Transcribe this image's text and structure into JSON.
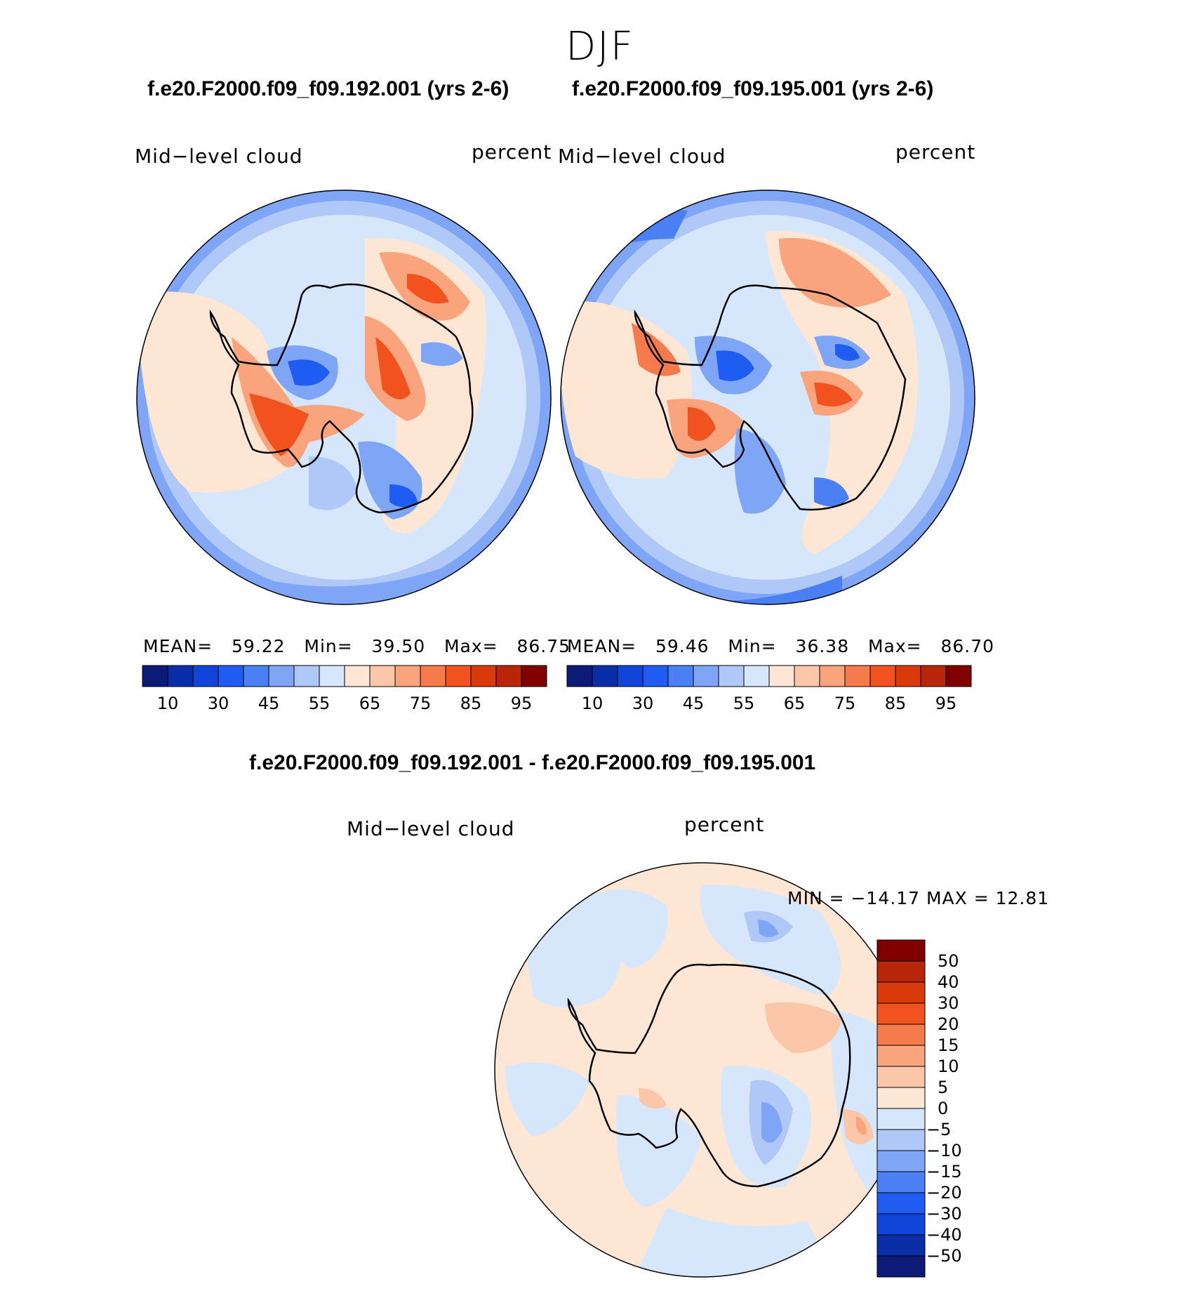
{
  "figure": {
    "title": "DJF",
    "panel_a": {
      "case_title": "f.e20.F2000.f09_f09.192.001 (yrs 2-6)",
      "variable": "Mid−level  cloud",
      "units": "percent",
      "stats": {
        "mean_label": "MEAN=",
        "mean": "59.22",
        "min_label": "Min=",
        "min": "39.50",
        "max_label": "Max=",
        "max": "86.75"
      }
    },
    "panel_b": {
      "case_title": "f.e20.F2000.f09_f09.195.001 (yrs 2-6)",
      "variable": "Mid−level  cloud",
      "units": "percent",
      "stats": {
        "mean_label": "MEAN=",
        "mean": "59.46",
        "min_label": "Min=",
        "min": "36.38",
        "max_label": "Max=",
        "max": "86.70"
      }
    },
    "panel_diff": {
      "case_title": "f.e20.F2000.f09_f09.192.001 - f.e20.F2000.f09_f09.195.001",
      "variable": "Mid−level  cloud",
      "units": "percent",
      "minmax_text": "MIN  =  −14.17  MAX  =    12.81"
    },
    "colorbar_abs": {
      "colors": [
        "#0c1a78",
        "#0a2ea8",
        "#0f45d8",
        "#1f5cf2",
        "#4b80f4",
        "#7fa6f6",
        "#b0c8f8",
        "#d6e6fb",
        "#fde6d4",
        "#fbc7a8",
        "#f9a47c",
        "#f67b4c",
        "#f2521e",
        "#d93a0c",
        "#b8260a",
        "#800000"
      ],
      "tick_labels": [
        "10",
        "30",
        "45",
        "55",
        "65",
        "75",
        "85",
        "95"
      ]
    },
    "colorbar_diff": {
      "colors": [
        "#800000",
        "#b8260a",
        "#d93a0c",
        "#f2521e",
        "#f67b4c",
        "#f9a47c",
        "#fbc7a8",
        "#fde6d4",
        "#d6e6fb",
        "#b0c8f8",
        "#7fa6f6",
        "#4b80f4",
        "#1f5cf2",
        "#0f45d8",
        "#0a2ea8",
        "#0c1a78"
      ],
      "tick_labels": [
        "50",
        "40",
        "30",
        "20",
        "15",
        "10",
        "5",
        "0",
        "−5",
        "−10",
        "−15",
        "−20",
        "−30",
        "−40",
        "−50"
      ]
    }
  },
  "chart_data": [
    {
      "type": "heatmap",
      "title": "f.e20.F2000.f09_f09.192.001 (yrs 2-6)",
      "variable": "Mid-level cloud",
      "units": "percent",
      "projection": "south polar stereographic",
      "levels": [
        5,
        10,
        20,
        30,
        40,
        45,
        50,
        55,
        60,
        65,
        70,
        75,
        80,
        85,
        90,
        95
      ],
      "stats": {
        "mean": 59.22,
        "min": 39.5,
        "max": 86.75
      }
    },
    {
      "type": "heatmap",
      "title": "f.e20.F2000.f09_f09.195.001 (yrs 2-6)",
      "variable": "Mid-level cloud",
      "units": "percent",
      "projection": "south polar stereographic",
      "levels": [
        5,
        10,
        20,
        30,
        40,
        45,
        50,
        55,
        60,
        65,
        70,
        75,
        80,
        85,
        90,
        95
      ],
      "stats": {
        "mean": 59.46,
        "min": 36.38,
        "max": 86.7
      }
    },
    {
      "type": "heatmap",
      "title": "f.e20.F2000.f09_f09.192.001 - f.e20.F2000.f09_f09.195.001",
      "variable": "Mid-level cloud",
      "units": "percent",
      "projection": "south polar stereographic",
      "levels": [
        -50,
        -40,
        -30,
        -20,
        -15,
        -10,
        -5,
        0,
        5,
        10,
        15,
        20,
        30,
        40,
        50
      ],
      "stats": {
        "min": -14.17,
        "max": 12.81
      }
    }
  ]
}
